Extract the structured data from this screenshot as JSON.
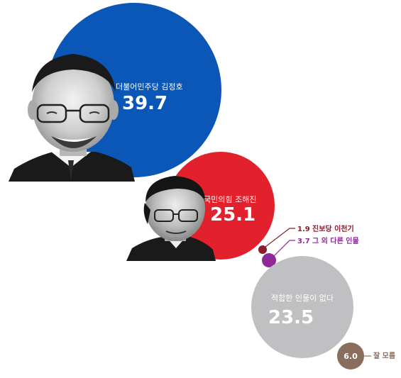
{
  "chart_data": {
    "type": "bubble",
    "unit": "%",
    "series": [
      {
        "party": "더불어민주당",
        "name": "김정호",
        "label": "더불어민주당 김정호",
        "value": 39.7,
        "color": "#0b57b8"
      },
      {
        "party": "국민의힘",
        "name": "조해진",
        "label": "국민의힘 조해진",
        "value": 25.1,
        "color": "#e3212c"
      },
      {
        "party": "진보당",
        "name": "이천기",
        "label": "진보당 이천기",
        "value": 1.9,
        "color": "#8a1c2b"
      },
      {
        "party": "",
        "name": "그 외 다른 인물",
        "label": "그 외 다른 인물",
        "value": 3.7,
        "color": "#8e2a97"
      },
      {
        "party": "",
        "name": "적합한 인물이 없다",
        "label": "적합한 인물이 없다",
        "value": 23.5,
        "color": "#c0bfc1"
      },
      {
        "party": "",
        "name": "잘 모름",
        "label": "잘 모름",
        "value": 6.0,
        "color": "#8a6e5d"
      }
    ]
  }
}
